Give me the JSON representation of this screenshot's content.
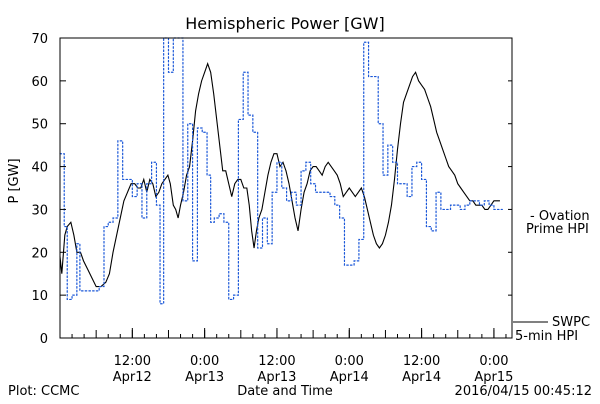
{
  "chart_data": {
    "type": "line",
    "title": "Hemispheric Power [GW]",
    "ylabel": "P [GW]",
    "xlabel": "Date and Time",
    "footer_left": "Plot: CCMC",
    "footer_right": "2016/04/15 00:45:12",
    "ylim": [
      0,
      70
    ],
    "xlim": [
      0,
      75
    ],
    "y_ticks": [
      0,
      10,
      20,
      30,
      40,
      50,
      60,
      70
    ],
    "x_ticks": [
      {
        "x": 12,
        "time": "12:00",
        "date": "Apr12"
      },
      {
        "x": 24,
        "time": "0:00",
        "date": "Apr13"
      },
      {
        "x": 36,
        "time": "12:00",
        "date": "Apr13"
      },
      {
        "x": 48,
        "time": "0:00",
        "date": "Apr14"
      },
      {
        "x": 60,
        "time": "12:00",
        "date": "Apr14"
      },
      {
        "x": 72,
        "time": "0:00",
        "date": "Apr15"
      }
    ],
    "series": [
      {
        "name_lines": [
          "SWPC",
          "5-min HPI"
        ],
        "color": "#000000",
        "style": "solid",
        "points": [
          [
            0.0,
            19
          ],
          [
            0.3,
            15
          ],
          [
            0.8,
            24
          ],
          [
            1.2,
            26
          ],
          [
            1.8,
            27
          ],
          [
            2.3,
            24
          ],
          [
            2.8,
            20
          ],
          [
            3.4,
            20
          ],
          [
            3.9,
            18
          ],
          [
            4.6,
            16
          ],
          [
            5.3,
            14
          ],
          [
            6.0,
            12
          ],
          [
            6.8,
            12
          ],
          [
            7.6,
            13
          ],
          [
            8.2,
            15
          ],
          [
            8.8,
            20
          ],
          [
            9.4,
            24
          ],
          [
            10.0,
            28
          ],
          [
            10.6,
            32
          ],
          [
            11.2,
            34
          ],
          [
            11.8,
            36
          ],
          [
            12.4,
            36
          ],
          [
            12.9,
            35
          ],
          [
            13.4,
            35
          ],
          [
            13.9,
            37
          ],
          [
            14.4,
            34
          ],
          [
            14.9,
            37
          ],
          [
            15.4,
            36
          ],
          [
            15.9,
            33
          ],
          [
            16.4,
            34
          ],
          [
            16.9,
            36
          ],
          [
            17.4,
            37
          ],
          [
            17.9,
            38
          ],
          [
            18.3,
            36
          ],
          [
            18.8,
            31
          ],
          [
            19.2,
            30
          ],
          [
            19.6,
            28
          ],
          [
            20.0,
            31
          ],
          [
            20.5,
            34
          ],
          [
            21.0,
            38
          ],
          [
            21.5,
            40
          ],
          [
            22.0,
            46
          ],
          [
            22.5,
            53
          ],
          [
            23.0,
            57
          ],
          [
            23.5,
            60
          ],
          [
            24.0,
            62
          ],
          [
            24.5,
            64
          ],
          [
            25.0,
            62
          ],
          [
            25.5,
            57
          ],
          [
            26.0,
            51
          ],
          [
            26.5,
            45
          ],
          [
            27.0,
            39
          ],
          [
            27.5,
            39
          ],
          [
            28.0,
            36
          ],
          [
            28.5,
            33
          ],
          [
            29.0,
            36
          ],
          [
            29.5,
            37
          ],
          [
            30.0,
            37
          ],
          [
            30.5,
            35
          ],
          [
            31.0,
            35
          ],
          [
            31.4,
            31
          ],
          [
            31.8,
            25
          ],
          [
            32.2,
            21
          ],
          [
            32.6,
            25
          ],
          [
            33.0,
            28
          ],
          [
            33.5,
            30
          ],
          [
            34.0,
            34
          ],
          [
            34.5,
            38
          ],
          [
            35.0,
            41
          ],
          [
            35.5,
            43
          ],
          [
            36.0,
            43
          ],
          [
            36.5,
            40
          ],
          [
            37.0,
            41
          ],
          [
            37.5,
            39
          ],
          [
            38.0,
            36
          ],
          [
            38.5,
            32
          ],
          [
            39.0,
            28
          ],
          [
            39.5,
            25
          ],
          [
            40.0,
            30
          ],
          [
            40.5,
            34
          ],
          [
            41.0,
            36
          ],
          [
            41.5,
            39
          ],
          [
            42.0,
            40
          ],
          [
            42.5,
            40
          ],
          [
            43.0,
            39
          ],
          [
            43.5,
            38
          ],
          [
            44.0,
            40
          ],
          [
            44.5,
            41
          ],
          [
            45.0,
            40
          ],
          [
            45.5,
            39
          ],
          [
            46.0,
            38
          ],
          [
            46.5,
            36
          ],
          [
            47.0,
            33
          ],
          [
            47.5,
            34
          ],
          [
            48.0,
            35
          ],
          [
            48.5,
            34
          ],
          [
            49.0,
            33
          ],
          [
            49.5,
            34
          ],
          [
            50.0,
            35
          ],
          [
            50.5,
            33
          ],
          [
            51.0,
            30
          ],
          [
            51.5,
            27
          ],
          [
            52.0,
            24
          ],
          [
            52.5,
            22
          ],
          [
            53.0,
            21
          ],
          [
            53.5,
            22
          ],
          [
            54.0,
            24
          ],
          [
            54.5,
            27
          ],
          [
            55.0,
            31
          ],
          [
            55.5,
            37
          ],
          [
            56.0,
            44
          ],
          [
            56.5,
            50
          ],
          [
            57.0,
            55
          ],
          [
            57.5,
            57
          ],
          [
            58.0,
            59
          ],
          [
            58.5,
            61
          ],
          [
            59.0,
            62
          ],
          [
            59.5,
            60
          ],
          [
            60.0,
            59
          ],
          [
            60.5,
            58
          ],
          [
            61.0,
            56
          ],
          [
            61.5,
            54
          ],
          [
            62.0,
            51
          ],
          [
            62.5,
            48
          ],
          [
            63.0,
            46
          ],
          [
            63.5,
            44
          ],
          [
            64.0,
            42
          ],
          [
            64.5,
            40
          ],
          [
            65.0,
            39
          ],
          [
            65.5,
            38
          ],
          [
            66.0,
            36
          ],
          [
            66.5,
            35
          ],
          [
            67.0,
            34
          ],
          [
            67.5,
            33
          ],
          [
            68.0,
            32
          ],
          [
            68.5,
            32
          ],
          [
            69.0,
            31
          ],
          [
            69.5,
            31
          ],
          [
            70.0,
            31
          ],
          [
            70.5,
            30
          ],
          [
            71.0,
            30
          ],
          [
            71.5,
            31
          ],
          [
            72.0,
            32
          ],
          [
            72.5,
            32
          ],
          [
            73.0,
            32
          ]
        ]
      },
      {
        "name_lines": [
          "- Ovation",
          "Prime HPI"
        ],
        "color": "#1a57d8",
        "style": "dotted-step",
        "points": [
          [
            0.0,
            43
          ],
          [
            0.7,
            26
          ],
          [
            1.2,
            9
          ],
          [
            2.0,
            10
          ],
          [
            2.8,
            22
          ],
          [
            3.3,
            11
          ],
          [
            4.2,
            11
          ],
          [
            5.0,
            11
          ],
          [
            5.8,
            11
          ],
          [
            6.5,
            12
          ],
          [
            7.3,
            26
          ],
          [
            8.0,
            27
          ],
          [
            8.8,
            28
          ],
          [
            9.6,
            46
          ],
          [
            10.4,
            37
          ],
          [
            11.2,
            37
          ],
          [
            12.0,
            33
          ],
          [
            12.8,
            36
          ],
          [
            13.6,
            28
          ],
          [
            14.4,
            36
          ],
          [
            15.2,
            41
          ],
          [
            16.0,
            31
          ],
          [
            16.6,
            8
          ],
          [
            17.2,
            70
          ],
          [
            18.0,
            62
          ],
          [
            18.8,
            70
          ],
          [
            19.6,
            70
          ],
          [
            20.4,
            32
          ],
          [
            21.2,
            50
          ],
          [
            22.0,
            18
          ],
          [
            22.8,
            49
          ],
          [
            23.6,
            48
          ],
          [
            24.4,
            38
          ],
          [
            25.0,
            27
          ],
          [
            25.6,
            28
          ],
          [
            26.4,
            29
          ],
          [
            27.2,
            27
          ],
          [
            28.0,
            9
          ],
          [
            28.8,
            10
          ],
          [
            29.6,
            51
          ],
          [
            30.4,
            62
          ],
          [
            31.2,
            52
          ],
          [
            32.0,
            48
          ],
          [
            32.8,
            21
          ],
          [
            33.6,
            28
          ],
          [
            34.4,
            22
          ],
          [
            35.2,
            34
          ],
          [
            36.0,
            41
          ],
          [
            36.8,
            35
          ],
          [
            37.6,
            32
          ],
          [
            38.4,
            34
          ],
          [
            39.2,
            31
          ],
          [
            40.0,
            39
          ],
          [
            40.8,
            41
          ],
          [
            41.6,
            36
          ],
          [
            42.4,
            34
          ],
          [
            43.2,
            34
          ],
          [
            44.0,
            34
          ],
          [
            44.8,
            33
          ],
          [
            45.6,
            31
          ],
          [
            46.4,
            28
          ],
          [
            47.2,
            17
          ],
          [
            48.0,
            17
          ],
          [
            48.8,
            18
          ],
          [
            49.6,
            23
          ],
          [
            50.4,
            69
          ],
          [
            51.2,
            61
          ],
          [
            52.0,
            61
          ],
          [
            52.8,
            50
          ],
          [
            53.6,
            38
          ],
          [
            54.4,
            45
          ],
          [
            55.2,
            41
          ],
          [
            56.0,
            36
          ],
          [
            56.8,
            36
          ],
          [
            57.6,
            33
          ],
          [
            58.4,
            40
          ],
          [
            59.2,
            41
          ],
          [
            60.0,
            37
          ],
          [
            60.8,
            26
          ],
          [
            61.6,
            25
          ],
          [
            62.4,
            34
          ],
          [
            63.2,
            30
          ],
          [
            64.0,
            30
          ],
          [
            64.8,
            31
          ],
          [
            65.6,
            31
          ],
          [
            66.4,
            30
          ],
          [
            67.2,
            31
          ],
          [
            68.0,
            32
          ],
          [
            68.8,
            32
          ],
          [
            69.6,
            31
          ],
          [
            70.4,
            32
          ],
          [
            71.2,
            31
          ],
          [
            72.0,
            30
          ],
          [
            72.8,
            30
          ],
          [
            73.4,
            30
          ]
        ]
      }
    ]
  }
}
